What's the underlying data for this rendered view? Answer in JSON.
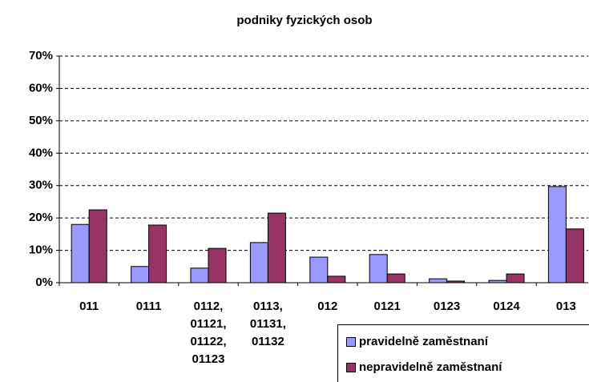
{
  "chart_data": {
    "type": "bar",
    "title": "podniky fyzických osob",
    "categories": [
      "011",
      "0111",
      "0112,\n01121,\n01122,\n01123",
      "0113,\n01131,\n01132",
      "012",
      "0121",
      "0123",
      "0124",
      "013"
    ],
    "series": [
      {
        "name": "pravidelně zaměstnaní",
        "color": "#9999ff",
        "values": [
          18,
          5,
          4.5,
          12.4,
          7.9,
          8.7,
          1.2,
          0.7,
          29.7
        ]
      },
      {
        "name": "nepravidelně zaměstnaní",
        "color": "#993366",
        "values": [
          22.5,
          17.8,
          10.6,
          21.5,
          2,
          2.7,
          0.5,
          2.7,
          16.6
        ]
      }
    ],
    "ylim": [
      0,
      70
    ],
    "yticks": [
      {
        "value": 0,
        "label": "0%"
      },
      {
        "value": 10,
        "label": "10%"
      },
      {
        "value": 20,
        "label": "20%"
      },
      {
        "value": 30,
        "label": "30%"
      },
      {
        "value": 40,
        "label": "40%"
      },
      {
        "value": 50,
        "label": "50%"
      },
      {
        "value": 60,
        "label": "60%"
      },
      {
        "value": 70,
        "label": "70%"
      }
    ],
    "grid": true
  }
}
